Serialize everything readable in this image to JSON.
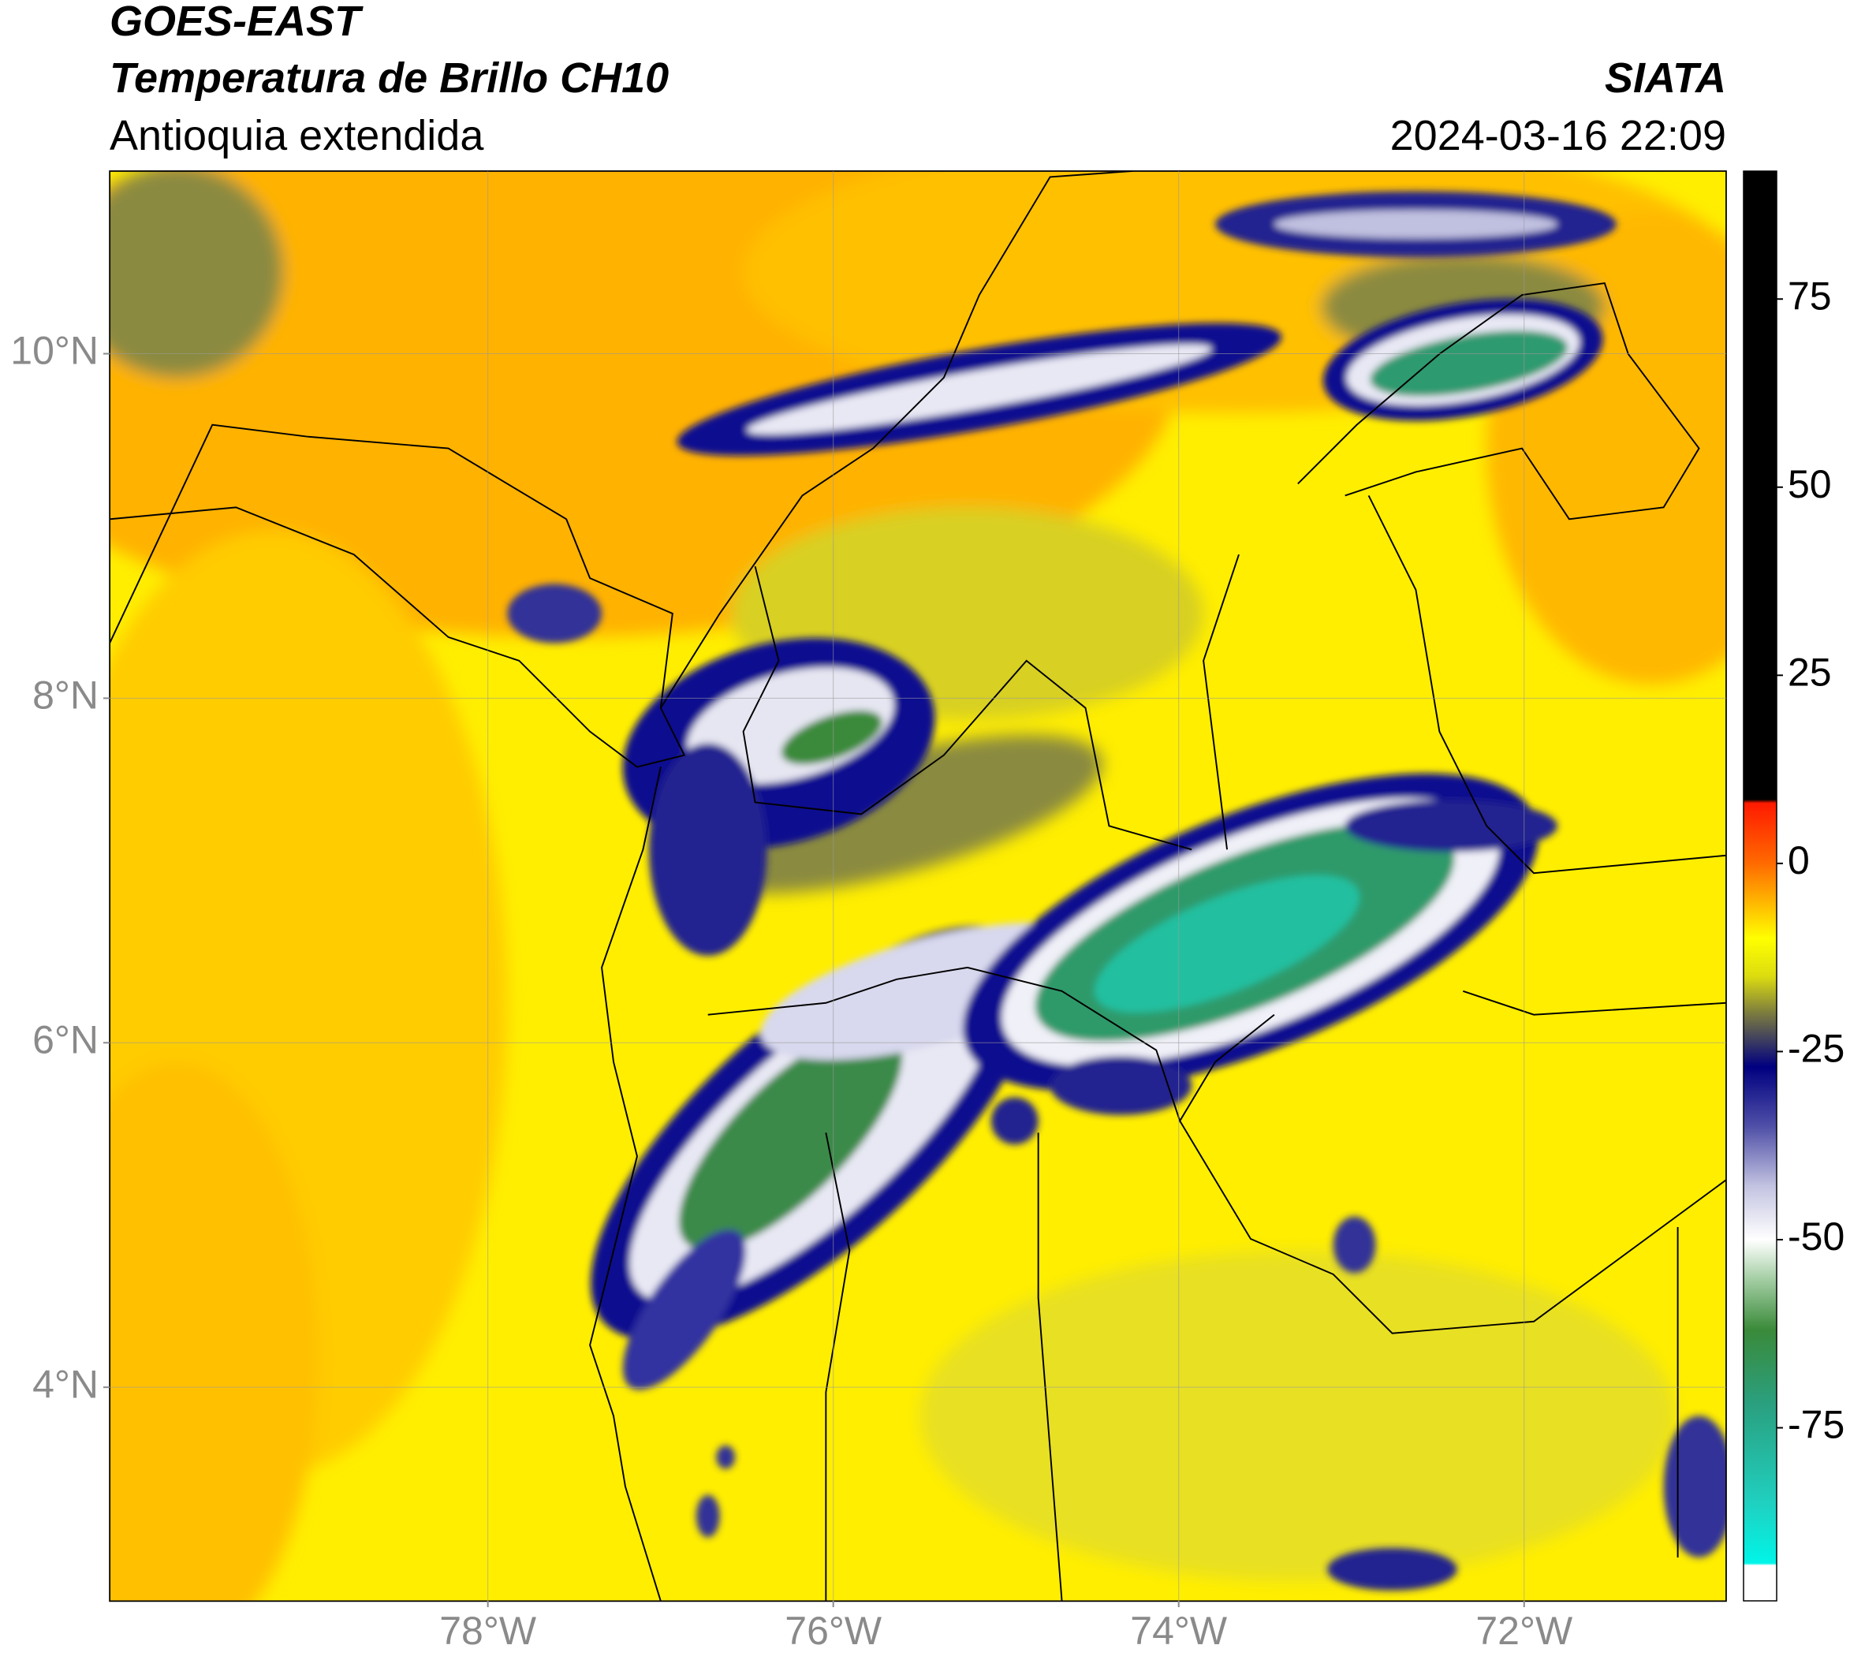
{
  "chart_data": {
    "type": "map",
    "title": "GOES-EAST",
    "subtitle": "Temperatura de Brillo CH10",
    "annotations": [
      "Antioquia extendida",
      "SIATA",
      "2024-03-16 22:09"
    ],
    "xlim": [
      -80.19,
      -70.83
    ],
    "ylim": [
      2.76,
      11.06
    ],
    "xticks": [
      {
        "value": -78,
        "label": "78°W"
      },
      {
        "value": -76,
        "label": "76°W"
      },
      {
        "value": -74,
        "label": "74°W"
      },
      {
        "value": -72,
        "label": "72°W"
      }
    ],
    "yticks": [
      {
        "value": 4,
        "label": "4°N"
      },
      {
        "value": 6,
        "label": "6°N"
      },
      {
        "value": 8,
        "label": "8°N"
      },
      {
        "value": 10,
        "label": "10°N"
      }
    ],
    "grid": true,
    "colorbar": {
      "lim": [
        -98,
        92
      ],
      "ticks": [
        -75,
        -50,
        -25,
        0,
        25,
        50,
        75
      ],
      "stops": [
        {
          "value": 92,
          "color": "#000000"
        },
        {
          "value": 8.5,
          "color": "#000000"
        },
        {
          "value": 8,
          "color": "#ff1a00"
        },
        {
          "value": 0,
          "color": "#ff6a00"
        },
        {
          "value": -5,
          "color": "#ffb400"
        },
        {
          "value": -10,
          "color": "#ffff00"
        },
        {
          "value": -15,
          "color": "#dcdc10"
        },
        {
          "value": -20,
          "color": "#7a7a40"
        },
        {
          "value": -27,
          "color": "#000080"
        },
        {
          "value": -35,
          "color": "#5050a8"
        },
        {
          "value": -43,
          "color": "#c4c4e2"
        },
        {
          "value": -50,
          "color": "#ffffff"
        },
        {
          "value": -55,
          "color": "#a8d0a8"
        },
        {
          "value": -62,
          "color": "#3a8a3a"
        },
        {
          "value": -72,
          "color": "#2aa080"
        },
        {
          "value": -85,
          "color": "#20d0c0"
        },
        {
          "value": -93,
          "color": "#00f5e8"
        },
        {
          "value": -93.3,
          "color": "#ffffff"
        },
        {
          "value": -98,
          "color": "#ffffff"
        }
      ]
    }
  }
}
